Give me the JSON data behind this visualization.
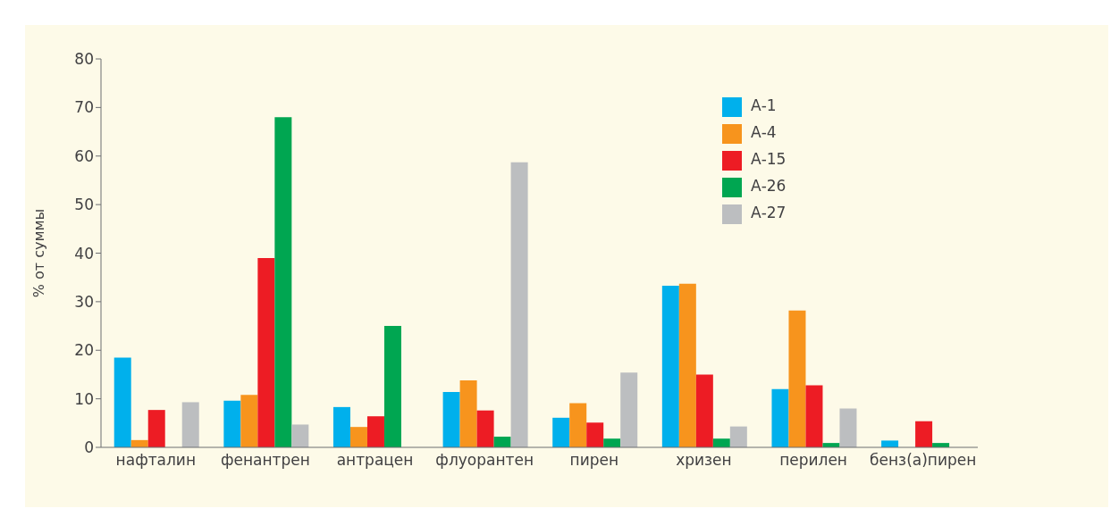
{
  "chart_data": {
    "type": "bar",
    "ylabel": "% от суммы",
    "categories": [
      "нафталин",
      "фенантрен",
      "антрацен",
      "флуорантен",
      "пирен",
      "хризен",
      "перилен",
      "бенз(а)пирен"
    ],
    "series": [
      {
        "name": "А-1",
        "color": "#00b0ec",
        "values": [
          18.5,
          9.6,
          8.3,
          11.4,
          6.1,
          33.3,
          12,
          1.4
        ]
      },
      {
        "name": "А-4",
        "color": "#f7941d",
        "values": [
          1.5,
          10.8,
          4.2,
          13.8,
          9.1,
          33.7,
          28.2,
          null
        ]
      },
      {
        "name": "А-15",
        "color": "#ed1c24",
        "values": [
          7.7,
          39,
          6.4,
          7.6,
          5.1,
          15,
          12.8,
          5.4
        ]
      },
      {
        "name": "А-26",
        "color": "#00a651",
        "values": [
          null,
          68,
          25,
          2.2,
          1.8,
          1.8,
          0.9,
          0.9
        ]
      },
      {
        "name": "А-27",
        "color": "#bcbec0",
        "values": [
          9.3,
          4.7,
          null,
          58.7,
          15.4,
          4.3,
          8,
          null
        ]
      }
    ],
    "ylim": [
      0,
      80
    ],
    "yticks": [
      0,
      10,
      20,
      30,
      40,
      50,
      60,
      70,
      80
    ],
    "grid": false,
    "legend": "top right"
  }
}
